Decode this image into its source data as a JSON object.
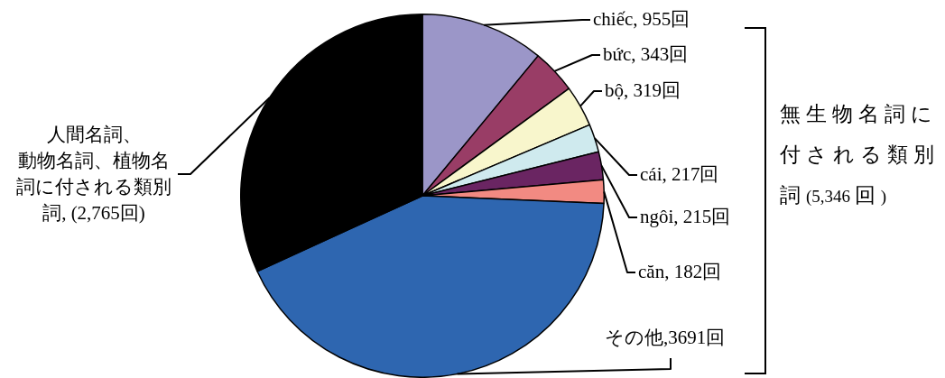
{
  "chart_data": {
    "type": "pie",
    "categories": [
      "chiếc, 955回",
      "bức, 343回",
      "bộ, 319回",
      "cái, 217回",
      "ngôi, 215回",
      "căn, 182回",
      "その他,3691回",
      "人間名詞、動物名詞、植物名詞に付される類別詞, (2,765回)"
    ],
    "values": [
      955,
      343,
      319,
      217,
      215,
      182,
      3691,
      2765
    ],
    "colors": [
      "#9b96c8",
      "#993d66",
      "#f8f6cc",
      "#cfeaee",
      "#6a2562",
      "#f28a82",
      "#2e66b0",
      "#000000"
    ],
    "annotations": [
      "無生物名詞に付される類別詞(5,346 回)"
    ]
  }
}
